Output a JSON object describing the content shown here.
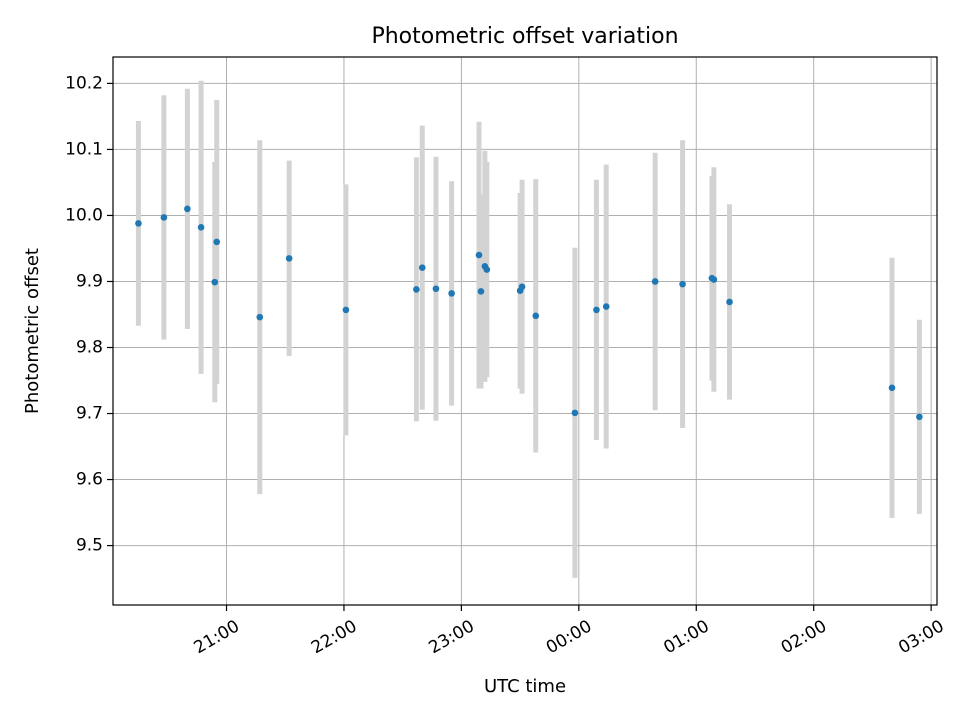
{
  "chart_data": {
    "type": "scatter",
    "title": "Photometric offset variation",
    "xlabel": "UTC time",
    "ylabel": "Photometric offset",
    "grid": true,
    "x_unit": "minutes",
    "xlim": [
      "20:02",
      "03:03"
    ],
    "ylim": [
      9.41,
      10.24
    ],
    "x_ticks": [
      "21:00",
      "22:00",
      "23:00",
      "00:00",
      "01:00",
      "02:00",
      "03:00"
    ],
    "y_ticks": [
      "9.5",
      "9.6",
      "9.7",
      "9.8",
      "9.9",
      "10.0",
      "10.1",
      "10.2"
    ],
    "colors": {
      "point": "#1f77b4",
      "errorbar": "#d3d3d3",
      "grid": "#b0b0b0"
    },
    "points": [
      {
        "t": "20:15",
        "y": 9.988,
        "err": 0.155
      },
      {
        "t": "20:28",
        "y": 9.997,
        "err": 0.185
      },
      {
        "t": "20:40",
        "y": 10.01,
        "err": 0.182
      },
      {
        "t": "20:47",
        "y": 9.982,
        "err": 0.222
      },
      {
        "t": "20:54",
        "y": 9.899,
        "err": 0.182
      },
      {
        "t": "20:55",
        "y": 9.96,
        "err": 0.215
      },
      {
        "t": "21:17",
        "y": 9.846,
        "err": 0.268
      },
      {
        "t": "21:32",
        "y": 9.935,
        "err": 0.148
      },
      {
        "t": "22:01",
        "y": 9.857,
        "err": 0.19
      },
      {
        "t": "22:37",
        "y": 9.888,
        "err": 0.2
      },
      {
        "t": "22:40",
        "y": 9.921,
        "err": 0.215
      },
      {
        "t": "22:47",
        "y": 9.889,
        "err": 0.2
      },
      {
        "t": "22:55",
        "y": 9.882,
        "err": 0.17
      },
      {
        "t": "23:09",
        "y": 9.94,
        "err": 0.202
      },
      {
        "t": "23:10",
        "y": 9.885,
        "err": 0.147
      },
      {
        "t": "23:12",
        "y": 9.923,
        "err": 0.175
      },
      {
        "t": "23:13",
        "y": 9.918,
        "err": 0.163
      },
      {
        "t": "23:30",
        "y": 9.886,
        "err": 0.148
      },
      {
        "t": "23:31",
        "y": 9.892,
        "err": 0.162
      },
      {
        "t": "23:38",
        "y": 9.848,
        "err": 0.207
      },
      {
        "t": "23:58",
        "y": 9.701,
        "err": 0.25
      },
      {
        "t": "00:09",
        "y": 9.857,
        "err": 0.197
      },
      {
        "t": "00:14",
        "y": 9.862,
        "err": 0.215
      },
      {
        "t": "00:39",
        "y": 9.9,
        "err": 0.195
      },
      {
        "t": "00:53",
        "y": 9.896,
        "err": 0.218
      },
      {
        "t": "01:08",
        "y": 9.905,
        "err": 0.155
      },
      {
        "t": "01:09",
        "y": 9.903,
        "err": 0.17
      },
      {
        "t": "01:17",
        "y": 9.869,
        "err": 0.148
      },
      {
        "t": "02:40",
        "y": 9.739,
        "err": 0.197
      },
      {
        "t": "02:54",
        "y": 9.695,
        "err": 0.147
      }
    ]
  }
}
